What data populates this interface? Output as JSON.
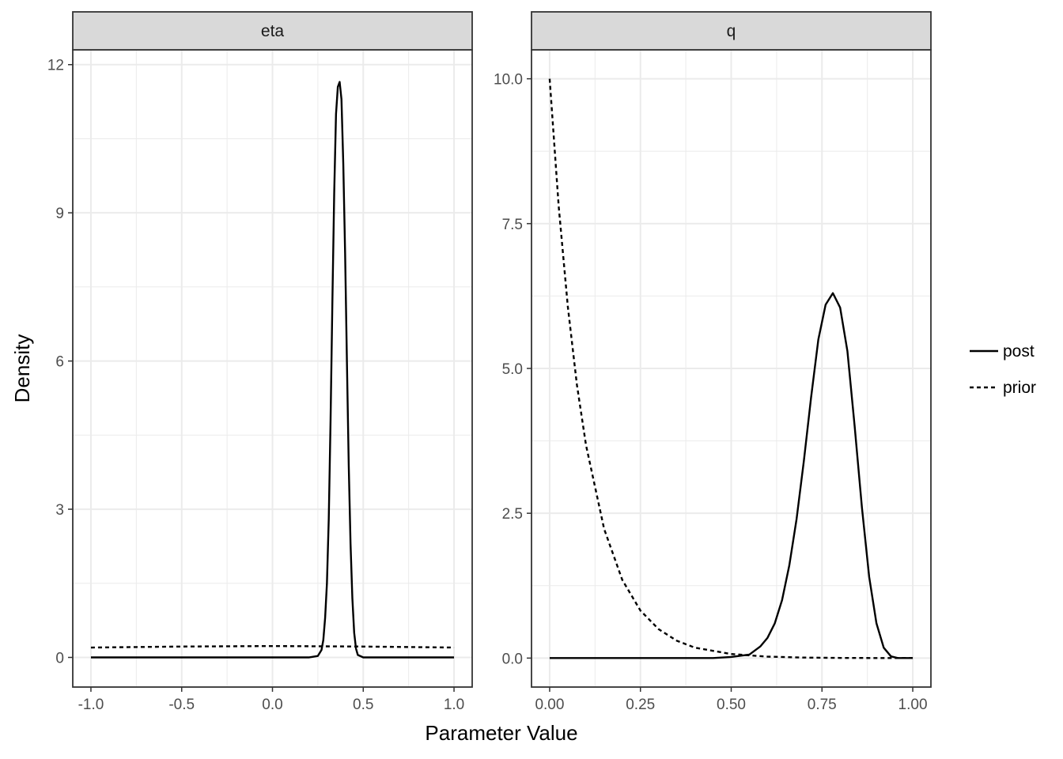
{
  "chart_data": {
    "type": "line",
    "xlabel": "Parameter Value",
    "ylabel": "Density",
    "grid": true,
    "legend": {
      "placement": "right",
      "entries": [
        {
          "name": "post",
          "linetype": "solid"
        },
        {
          "name": "prior",
          "linetype": "dashed"
        }
      ]
    },
    "facets": [
      {
        "strip": "eta",
        "xlim": [
          -1.1,
          1.1
        ],
        "ylim": [
          -0.6,
          12.3
        ],
        "xticks": [
          -1.0,
          -0.5,
          0.0,
          0.5,
          1.0
        ],
        "xtick_labels": [
          "-1.0",
          "-0.5",
          "0.0",
          "0.5",
          "1.0"
        ],
        "yticks": [
          0,
          3,
          6,
          9,
          12
        ],
        "ytick_labels": [
          "0",
          "3",
          "6",
          "9",
          "12"
        ],
        "series": [
          {
            "name": "post",
            "x": [
              -1.0,
              0.2,
              0.25,
              0.27,
              0.28,
              0.29,
              0.3,
              0.31,
              0.32,
              0.33,
              0.34,
              0.35,
              0.36,
              0.37,
              0.38,
              0.39,
              0.4,
              0.41,
              0.42,
              0.43,
              0.44,
              0.45,
              0.46,
              0.47,
              0.5,
              1.0
            ],
            "y": [
              0,
              0,
              0.03,
              0.15,
              0.35,
              0.8,
              1.5,
              2.8,
              4.8,
              7.2,
              9.4,
              11.0,
              11.55,
              11.65,
              11.3,
              10.0,
              8.2,
              6.0,
              3.9,
              2.3,
              1.2,
              0.5,
              0.18,
              0.05,
              0,
              0
            ]
          },
          {
            "name": "prior",
            "x": [
              -1.0,
              -0.75,
              -0.5,
              -0.25,
              0.0,
              0.25,
              0.5,
              0.75,
              1.0
            ],
            "y": [
              0.2,
              0.21,
              0.22,
              0.225,
              0.23,
              0.225,
              0.22,
              0.21,
              0.2
            ]
          }
        ]
      },
      {
        "strip": "q",
        "xlim": [
          -0.05,
          1.05
        ],
        "ylim": [
          -0.5,
          10.5
        ],
        "xticks": [
          0.0,
          0.25,
          0.5,
          0.75,
          1.0
        ],
        "xtick_labels": [
          "0.00",
          "0.25",
          "0.50",
          "0.75",
          "1.00"
        ],
        "yticks": [
          0.0,
          2.5,
          5.0,
          7.5,
          10.0
        ],
        "ytick_labels": [
          "0.0",
          "2.5",
          "5.0",
          "7.5",
          "10.0"
        ],
        "series": [
          {
            "name": "post",
            "x": [
              0.0,
              0.45,
              0.5,
              0.55,
              0.58,
              0.6,
              0.62,
              0.64,
              0.66,
              0.68,
              0.7,
              0.72,
              0.74,
              0.76,
              0.78,
              0.8,
              0.82,
              0.84,
              0.86,
              0.88,
              0.9,
              0.92,
              0.94,
              0.96,
              1.0
            ],
            "y": [
              0,
              0,
              0.02,
              0.06,
              0.2,
              0.35,
              0.6,
              1.0,
              1.6,
              2.4,
              3.4,
              4.5,
              5.5,
              6.1,
              6.3,
              6.05,
              5.3,
              4.0,
              2.6,
              1.4,
              0.6,
              0.18,
              0.03,
              0,
              0
            ]
          },
          {
            "name": "prior",
            "x": [
              0.0,
              0.025,
              0.05,
              0.075,
              0.1,
              0.15,
              0.2,
              0.25,
              0.3,
              0.35,
              0.4,
              0.5,
              0.6,
              0.7,
              0.8,
              0.9,
              1.0
            ],
            "y": [
              10.0,
              7.79,
              6.07,
              4.72,
              3.68,
              2.23,
              1.35,
              0.82,
              0.5,
              0.3,
              0.18,
              0.07,
              0.025,
              0.009,
              0.003,
              0.001,
              0
            ]
          }
        ]
      }
    ]
  }
}
